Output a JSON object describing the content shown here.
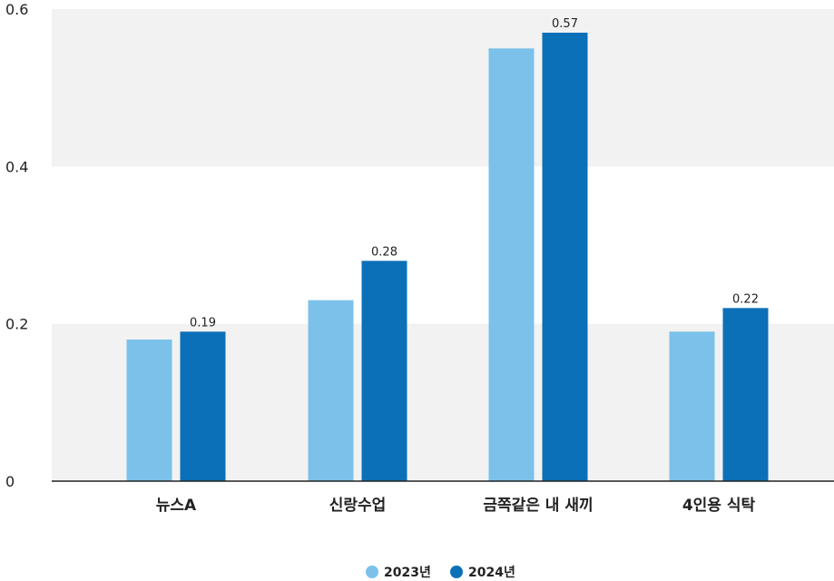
{
  "chart_data": {
    "type": "bar",
    "categories": [
      "뉴스A",
      "신랑수업",
      "금쪽같은 내 새끼",
      "4인용 식탁"
    ],
    "series": [
      {
        "name": "2023년",
        "values": [
          0.18,
          0.23,
          0.55,
          0.19
        ],
        "color": "#7bc1ea",
        "labels": [
          "",
          "",
          "",
          ""
        ]
      },
      {
        "name": "2024년",
        "values": [
          0.19,
          0.28,
          0.57,
          0.22
        ],
        "color": "#0b70b8",
        "labels": [
          "0.19",
          "0.28",
          "0.57",
          "0.22"
        ]
      }
    ],
    "ylim": [
      0,
      0.6
    ],
    "yticks": [
      "0",
      "0.2",
      "0.4",
      "0.6"
    ],
    "grid": "alternating-bands",
    "legend": "bottom-center",
    "band_color": "#f2f2f2"
  }
}
